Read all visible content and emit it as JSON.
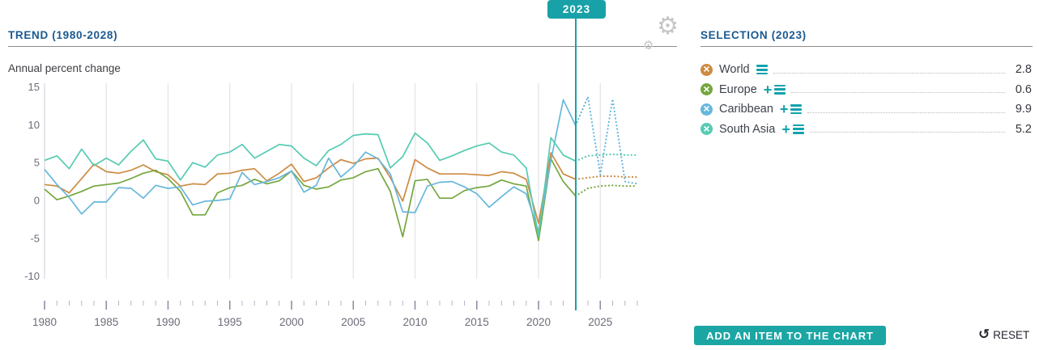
{
  "timeline": {
    "selected_year": "2023"
  },
  "trend_panel": {
    "title": "TREND (1980-2028)",
    "subtitle": "Annual percent change"
  },
  "selection_panel": {
    "title": "SELECTION (2023)",
    "items": [
      {
        "label": "World",
        "value": "2.8",
        "color": "#cd8b43",
        "has_add": false
      },
      {
        "label": "Europe",
        "value": "0.6",
        "color": "#75a73f",
        "has_add": true
      },
      {
        "label": "Caribbean",
        "value": "9.9",
        "color": "#67b7dc",
        "has_add": true
      },
      {
        "label": "South Asia",
        "value": "5.2",
        "color": "#56cbb2",
        "has_add": true
      }
    ],
    "add_button_label": "ADD AN ITEM TO THE CHART",
    "reset_label": "RESET"
  },
  "icons": {
    "settings_gear": "⚙",
    "reset_arrow": "↺",
    "remove_item": "×",
    "add_item": "+",
    "menu_bars": "≡"
  },
  "colors": {
    "accent_teal": "#18a2a8",
    "icon_teal": "#12a2ad",
    "header_blue": "#1b5a90",
    "grid": "#e3e3e7",
    "axis_line": "#dcdce2",
    "tick_minor": "#b4b4c6",
    "tick_major": "#8f8fa6",
    "axis_label": "#6c6c7a",
    "divider": "#8c8c8c",
    "gear_gray": "#c6c6c6"
  },
  "chart_data": {
    "type": "line",
    "title": "TREND (1980-2028)",
    "ylabel": "Annual percent change",
    "ylim": [
      -10,
      15
    ],
    "y_ticks": [
      15,
      10,
      5,
      0,
      -5,
      -10
    ],
    "x_gridlines": [
      1985,
      1990,
      1995,
      2000,
      2005,
      2010,
      2015,
      2020,
      2025
    ],
    "x_tick_labels": [
      "1980",
      "1985",
      "1990",
      "1995",
      "2000",
      "2005",
      "2010",
      "2015",
      "2020",
      "2025"
    ],
    "x_start": 1980,
    "x_end": 2028,
    "forecast_start": 2023,
    "marker_year": 2023,
    "legend_position": "right-panel",
    "grid": "vertical-only",
    "x": [
      1980,
      1981,
      1982,
      1983,
      1984,
      1985,
      1986,
      1987,
      1988,
      1989,
      1990,
      1991,
      1992,
      1993,
      1994,
      1995,
      1996,
      1997,
      1998,
      1999,
      2000,
      2001,
      2002,
      2003,
      2004,
      2005,
      2006,
      2007,
      2008,
      2009,
      2010,
      2011,
      2012,
      2013,
      2014,
      2015,
      2016,
      2017,
      2018,
      2019,
      2020,
      2021,
      2022,
      2023,
      2024,
      2025,
      2026,
      2027,
      2028
    ],
    "series": [
      {
        "name": "World",
        "color": "#cd8b43",
        "values": [
          2.1,
          1.9,
          1.0,
          2.9,
          4.8,
          3.8,
          3.6,
          4.0,
          4.7,
          3.8,
          3.4,
          1.9,
          2.2,
          2.1,
          3.5,
          3.6,
          4.0,
          4.2,
          2.6,
          3.6,
          4.8,
          2.5,
          3.0,
          4.3,
          5.4,
          4.9,
          5.5,
          5.6,
          3.0,
          -0.1,
          5.4,
          4.3,
          3.5,
          3.5,
          3.5,
          3.4,
          3.3,
          3.8,
          3.6,
          2.8,
          -3.0,
          6.3,
          3.5,
          2.8,
          3.0,
          3.2,
          3.2,
          3.1,
          3.1
        ]
      },
      {
        "name": "Europe",
        "color": "#75a73f",
        "values": [
          1.5,
          0.1,
          0.6,
          1.2,
          1.9,
          2.1,
          2.3,
          2.9,
          3.6,
          4.0,
          2.9,
          1.2,
          -1.9,
          -1.9,
          1.0,
          1.7,
          2.0,
          2.8,
          2.2,
          2.6,
          3.9,
          2.0,
          1.5,
          1.8,
          2.7,
          3.0,
          3.8,
          4.2,
          1.2,
          -4.8,
          2.6,
          2.8,
          0.3,
          0.3,
          1.3,
          1.7,
          1.9,
          2.7,
          2.2,
          1.9,
          -5.3,
          5.5,
          2.5,
          0.6,
          1.6,
          1.9,
          2.0,
          1.9,
          1.9
        ]
      },
      {
        "name": "Caribbean",
        "color": "#67b7dc",
        "values": [
          4.1,
          2.1,
          0.4,
          -1.8,
          -0.2,
          -0.2,
          1.7,
          1.6,
          0.3,
          2.0,
          1.6,
          1.8,
          -0.6,
          -0.1,
          0.0,
          0.2,
          3.7,
          2.1,
          2.5,
          3.0,
          3.9,
          1.1,
          2.0,
          5.6,
          3.1,
          4.5,
          6.4,
          5.5,
          3.5,
          -1.5,
          -1.6,
          1.9,
          2.4,
          2.5,
          1.8,
          0.9,
          -0.9,
          0.5,
          1.8,
          0.9,
          -4.1,
          5.3,
          13.3,
          9.9,
          13.7,
          3.4,
          13.4,
          2.5,
          2.2
        ]
      },
      {
        "name": "South Asia",
        "color": "#56cbb2",
        "values": [
          5.3,
          5.9,
          4.2,
          6.8,
          4.6,
          5.6,
          4.7,
          6.5,
          8.0,
          5.5,
          5.2,
          2.7,
          5.0,
          4.4,
          6.0,
          6.4,
          7.4,
          5.6,
          6.5,
          7.4,
          7.2,
          5.6,
          4.6,
          6.6,
          7.4,
          8.6,
          8.8,
          8.7,
          4.3,
          5.8,
          8.9,
          7.6,
          5.3,
          5.9,
          6.6,
          7.2,
          7.6,
          6.4,
          6.0,
          4.3,
          -4.7,
          8.3,
          6.0,
          5.2,
          5.9,
          6.0,
          6.1,
          6.0,
          6.0
        ]
      }
    ],
    "values_at_marker": {
      "World": 2.8,
      "Europe": 0.6,
      "Caribbean": 9.9,
      "South Asia": 5.2
    }
  }
}
